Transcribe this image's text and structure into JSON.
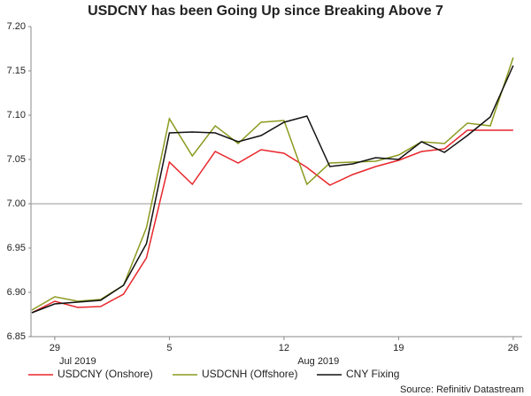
{
  "chart_data": {
    "type": "line",
    "title": "USDCNY has been Going Up since Breaking Above 7",
    "categories": [
      null,
      "29",
      null,
      null,
      null,
      null,
      "5",
      null,
      null,
      null,
      null,
      "12",
      null,
      null,
      null,
      null,
      "19",
      null,
      null,
      null,
      null,
      "26"
    ],
    "month_labels": [
      {
        "index": 2,
        "label": "Jul 2019"
      },
      {
        "index": 12.5,
        "label": "Aug 2019"
      }
    ],
    "series": [
      {
        "name": "USDCNY (Onshore)",
        "color": "#e8262b",
        "values": [
          6.877,
          6.89,
          6.883,
          6.884,
          6.898,
          6.939,
          7.047,
          7.022,
          7.059,
          7.046,
          7.061,
          7.057,
          7.041,
          7.021,
          7.033,
          7.042,
          7.049,
          7.059,
          7.062,
          7.083,
          7.083,
          7.083
        ]
      },
      {
        "name": "USDCNH (Offshore)",
        "color": "#8c9a1f",
        "values": [
          6.88,
          6.895,
          6.89,
          6.892,
          6.908,
          6.973,
          7.096,
          7.054,
          7.088,
          7.068,
          7.092,
          7.094,
          7.022,
          7.046,
          7.047,
          7.048,
          7.055,
          7.07,
          7.068,
          7.091,
          7.088,
          7.165
        ]
      },
      {
        "name": "CNY Fixing",
        "color": "#111111",
        "values": [
          6.877,
          6.887,
          6.889,
          6.891,
          6.908,
          6.955,
          7.08,
          7.081,
          7.08,
          7.07,
          7.077,
          7.092,
          7.099,
          7.042,
          7.045,
          7.052,
          7.05,
          7.07,
          7.058,
          7.077,
          7.098,
          7.156
        ]
      }
    ],
    "ylim": [
      6.85,
      7.2
    ],
    "yticks": [
      6.85,
      {
        "value": 6.9,
        "label": "6.90"
      },
      6.95,
      {
        "value": 7.0,
        "label": "7.00"
      },
      7.05,
      {
        "value": 7.1,
        "label": "7.10"
      },
      7.15,
      {
        "value": 7.2,
        "label": "7.20"
      }
    ],
    "reference_line": 7.0,
    "source": "Source: Refinitiv Datastream"
  }
}
